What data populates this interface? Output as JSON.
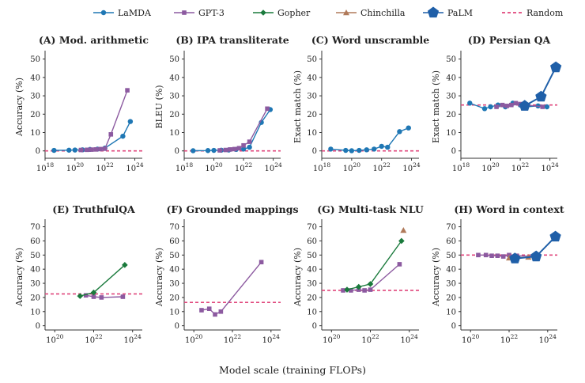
{
  "x_axis_label": "Model scale (training FLOPs)",
  "legend": [
    {
      "name": "LaMDA",
      "color": "#1f77b4",
      "marker": "circle"
    },
    {
      "name": "GPT-3",
      "color": "#8c5aa0",
      "marker": "square"
    },
    {
      "name": "Gopher",
      "color": "#1a7a3c",
      "marker": "diamond"
    },
    {
      "name": "Chinchilla",
      "color": "#b07a5a",
      "marker": "triangle"
    },
    {
      "name": "PaLM",
      "color": "#1f5fa8",
      "marker": "pentagon"
    },
    {
      "name": "Random",
      "color": "#e0457b",
      "marker": "dashed"
    }
  ],
  "chart_data": [
    {
      "type": "line",
      "title": "(A) Mod. arithmetic",
      "ylabel": "Accuracy (%)",
      "xscale": "log",
      "xlim": [
        18,
        24.5
      ],
      "xticks": [
        18,
        20,
        22,
        24
      ],
      "ylim": [
        -4,
        52
      ],
      "yticks": [
        0,
        10,
        20,
        30,
        40,
        50
      ],
      "random": 0,
      "series": [
        {
          "name": "LaMDA",
          "x": [
            18.6,
            19.6,
            20.0,
            20.5,
            21.0,
            21.5,
            22.0,
            23.2,
            23.7
          ],
          "y": [
            0.3,
            0.4,
            0.5,
            0.6,
            0.8,
            1.0,
            1.5,
            8.0,
            16.0
          ]
        },
        {
          "name": "GPT-3",
          "x": [
            20.4,
            20.8,
            21.1,
            21.4,
            21.7,
            22.0,
            22.4,
            23.5
          ],
          "y": [
            0.5,
            0.6,
            0.7,
            0.8,
            1.0,
            1.2,
            9.0,
            33.0
          ]
        }
      ]
    },
    {
      "type": "line",
      "title": "(B) IPA transliterate",
      "ylabel": "BLEU (%)",
      "xscale": "log",
      "xlim": [
        18,
        24.5
      ],
      "xticks": [
        18,
        20,
        22,
        24
      ],
      "ylim": [
        -4,
        52
      ],
      "yticks": [
        0,
        10,
        20,
        30,
        40,
        50
      ],
      "random": 0,
      "series": [
        {
          "name": "LaMDA",
          "x": [
            18.6,
            19.6,
            20.0,
            20.5,
            21.0,
            21.5,
            22.0,
            22.4,
            23.2,
            23.8
          ],
          "y": [
            0.1,
            0.2,
            0.3,
            0.4,
            0.5,
            0.8,
            1.0,
            2.0,
            15.5,
            22.5
          ]
        },
        {
          "name": "GPT-3",
          "x": [
            20.4,
            20.8,
            21.1,
            21.4,
            21.7,
            22.0,
            22.4,
            23.6
          ],
          "y": [
            0.3,
            0.5,
            0.8,
            1.0,
            1.5,
            3.0,
            5.0,
            23.0
          ]
        }
      ]
    },
    {
      "type": "line",
      "title": "(C) Word unscramble",
      "ylabel": "Exact match (%)",
      "xscale": "log",
      "xlim": [
        18,
        24.5
      ],
      "xticks": [
        18,
        20,
        22,
        24
      ],
      "ylim": [
        -4,
        52
      ],
      "yticks": [
        0,
        10,
        20,
        30,
        40,
        50
      ],
      "random": 0,
      "series": [
        {
          "name": "LaMDA",
          "x": [
            18.6,
            19.6,
            20.0,
            20.5,
            21.0,
            21.5,
            22.0,
            22.4,
            23.2,
            23.8
          ],
          "y": [
            1.0,
            0.3,
            0.1,
            0.3,
            0.6,
            1.0,
            2.5,
            2.0,
            10.5,
            12.5
          ]
        }
      ]
    },
    {
      "type": "line",
      "title": "(D) Persian QA",
      "ylabel": "Exact match (%)",
      "xscale": "log",
      "xlim": [
        18,
        24.5
      ],
      "xticks": [
        18,
        20,
        22,
        24
      ],
      "ylim": [
        -4,
        52
      ],
      "yticks": [
        0,
        10,
        20,
        30,
        40,
        50
      ],
      "random": 25,
      "series": [
        {
          "name": "LaMDA",
          "x": [
            18.6,
            19.6,
            20.0,
            20.5,
            21.0,
            21.5,
            22.0,
            22.4,
            23.2,
            23.8
          ],
          "y": [
            26.0,
            23.0,
            24.0,
            25.0,
            24.0,
            26.0,
            25.0,
            24.0,
            24.5,
            24.0
          ]
        },
        {
          "name": "GPT-3",
          "x": [
            20.4,
            20.8,
            21.1,
            21.4,
            21.7,
            22.0,
            22.4,
            23.5
          ],
          "y": [
            24.0,
            25.0,
            24.5,
            25.0,
            26.0,
            25.5,
            25.0,
            24.0
          ]
        },
        {
          "name": "PaLM",
          "x": [
            22.3,
            23.4,
            24.4
          ],
          "y": [
            24.5,
            29.5,
            45.5
          ]
        }
      ]
    },
    {
      "type": "line",
      "title": "(E) TruthfulQA",
      "ylabel": "Accuracy (%)",
      "xscale": "log",
      "xlim": [
        19.5,
        24.5
      ],
      "xticks": [
        20,
        22,
        24
      ],
      "ylim": [
        -3,
        72
      ],
      "yticks": [
        0,
        10,
        20,
        30,
        40,
        50,
        60,
        70
      ],
      "random": 22.5,
      "series": [
        {
          "name": "GPT-3",
          "x": [
            21.6,
            22.0,
            22.4,
            23.5
          ],
          "y": [
            21.5,
            20.5,
            20.0,
            20.5
          ]
        },
        {
          "name": "Gopher",
          "x": [
            21.3,
            22.0,
            23.6
          ],
          "y": [
            21.0,
            23.5,
            43.0
          ]
        }
      ]
    },
    {
      "type": "line",
      "title": "(F) Grounded mappings",
      "ylabel": "Accuracy (%)",
      "xscale": "log",
      "xlim": [
        19.5,
        24.5
      ],
      "xticks": [
        20,
        22,
        24
      ],
      "ylim": [
        -3,
        72
      ],
      "yticks": [
        0,
        10,
        20,
        30,
        40,
        50,
        60,
        70
      ],
      "random": 16.5,
      "series": [
        {
          "name": "GPT-3",
          "x": [
            20.4,
            20.8,
            21.1,
            21.4,
            23.5
          ],
          "y": [
            11.0,
            12.0,
            8.0,
            10.0,
            45.0
          ]
        }
      ]
    },
    {
      "type": "line",
      "title": "(G) Multi-task NLU",
      "ylabel": "Accuracy (%)",
      "xscale": "log",
      "xlim": [
        19.5,
        24.5
      ],
      "xticks": [
        20,
        22,
        24
      ],
      "ylim": [
        -3,
        72
      ],
      "yticks": [
        0,
        10,
        20,
        30,
        40,
        50,
        60,
        70
      ],
      "random": 25,
      "series": [
        {
          "name": "GPT-3",
          "x": [
            20.6,
            21.0,
            21.4,
            21.7,
            22.0,
            23.5
          ],
          "y": [
            25.0,
            25.0,
            25.5,
            25.0,
            25.5,
            43.5
          ]
        },
        {
          "name": "Gopher",
          "x": [
            20.8,
            21.4,
            22.0,
            23.6
          ],
          "y": [
            25.5,
            27.5,
            29.5,
            60.0
          ]
        },
        {
          "name": "Chinchilla",
          "x": [
            23.7
          ],
          "y": [
            67.5
          ]
        }
      ]
    },
    {
      "type": "line",
      "title": "(H) Word in context",
      "ylabel": "Accuracy (%)",
      "xscale": "log",
      "xlim": [
        19.5,
        24.5
      ],
      "xticks": [
        20,
        22,
        24
      ],
      "ylim": [
        -3,
        72
      ],
      "yticks": [
        0,
        10,
        20,
        30,
        40,
        50,
        60,
        70
      ],
      "random": 50,
      "series": [
        {
          "name": "GPT-3",
          "x": [
            20.4,
            20.8,
            21.1,
            21.4,
            21.7,
            22.0,
            22.4,
            23.5
          ],
          "y": [
            50.0,
            50.0,
            49.5,
            49.5,
            49.0,
            50.0,
            49.5,
            49.0
          ]
        },
        {
          "name": "Chinchilla",
          "x": [
            22.0,
            23.0
          ],
          "y": [
            48.0,
            48.5
          ]
        },
        {
          "name": "PaLM",
          "x": [
            22.3,
            23.4,
            24.4
          ],
          "y": [
            47.5,
            49.0,
            63.0
          ]
        }
      ]
    }
  ]
}
